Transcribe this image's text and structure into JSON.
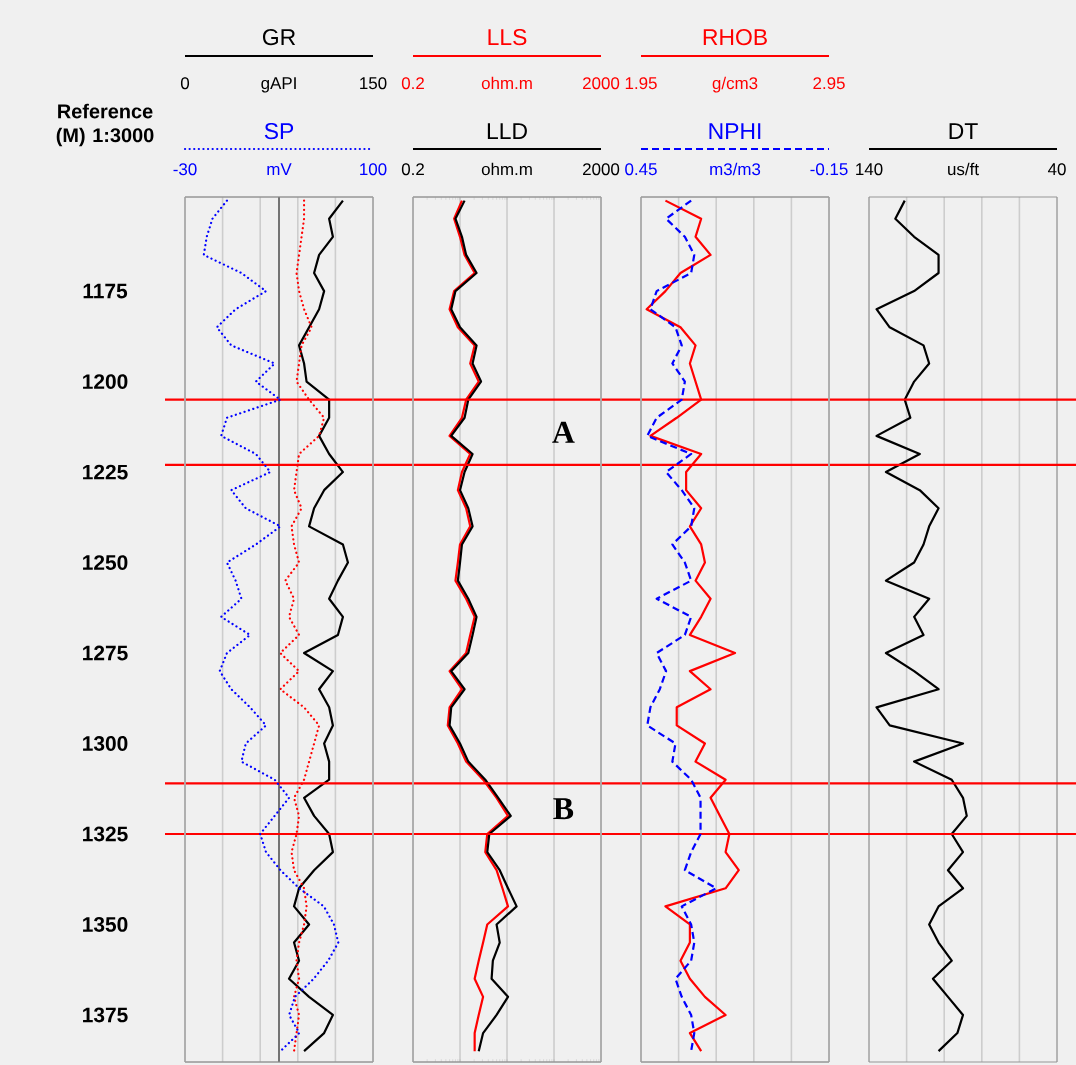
{
  "chart_data": [
    {
      "type": "line",
      "orientation": "horizontal",
      "ylabel": "Reference (M) 1:3000",
      "xlabel": "gAPI",
      "x2label": "mV",
      "x": [
        1150,
        1155,
        1160,
        1165,
        1170,
        1175,
        1180,
        1185,
        1190,
        1195,
        1200,
        1205,
        1210,
        1215,
        1220,
        1225,
        1230,
        1235,
        1240,
        1245,
        1250,
        1255,
        1260,
        1265,
        1270,
        1275,
        1280,
        1285,
        1290,
        1295,
        1300,
        1305,
        1310,
        1315,
        1320,
        1325,
        1330,
        1335,
        1340,
        1345,
        1350,
        1355,
        1360,
        1365,
        1370,
        1375,
        1380,
        1385
      ],
      "series": [
        {
          "name": "GR",
          "color": "#000000",
          "line_style": "solid",
          "values": [
            126,
            115,
            118,
            107,
            103,
            111,
            107,
            99,
            91,
            95,
            97,
            115,
            115,
            107,
            115,
            126,
            111,
            103,
            99,
            126,
            130,
            122,
            115,
            126,
            122,
            95,
            118,
            107,
            115,
            118,
            111,
            115,
            115,
            95,
            103,
            115,
            118,
            103,
            91,
            87,
            99,
            87,
            91,
            83,
            99,
            118,
            111,
            95
          ]
        },
        {
          "color": "#ff0000",
          "line_style": "dotted",
          "values": [
            95,
            95,
            93,
            91,
            89,
            91,
            95,
            101,
            93,
            91,
            89,
            99,
            111,
            107,
            91,
            89,
            87,
            93,
            85,
            87,
            91,
            80,
            87,
            83,
            91,
            76,
            91,
            76,
            95,
            107,
            103,
            99,
            95,
            87,
            91,
            89,
            85,
            87,
            95,
            97,
            95,
            91,
            89,
            91,
            87,
            91,
            89,
            87
          ]
        },
        {
          "name": "SP",
          "color": "#0000ff",
          "line_style": "dotted",
          "axis": "x2",
          "values": [
            -1,
            -11,
            -15,
            -17,
            9,
            26,
            5,
            -8,
            2,
            32,
            19,
            36,
            -1,
            -5,
            19,
            29,
            2,
            12,
            36,
            19,
            -1,
            5,
            9,
            -5,
            15,
            -1,
            -6,
            2,
            15,
            26,
            12,
            9,
            32,
            42,
            32,
            22,
            26,
            36,
            49,
            66,
            73,
            76,
            69,
            59,
            46,
            42,
            49,
            36
          ]
        }
      ],
      "xlim": [
        0,
        150
      ],
      "xticks": [
        0,
        {
          "value": 30,
          "label": null
        },
        {
          "value": 60,
          "label": null
        },
        {
          "value": 90,
          "label": null
        },
        {
          "value": 120,
          "label": null
        },
        150
      ],
      "x2lim": [
        -30,
        100
      ],
      "x2ticks": [
        -30,
        100
      ],
      "ylim": [
        1388,
        1149
      ],
      "yticks": [
        1175,
        1200,
        1225,
        1250,
        1275,
        1300,
        1325,
        1350,
        1375
      ],
      "grid": "x",
      "legend": "top",
      "ref_lines": [
        {
          "axis": "x",
          "value": 75,
          "color": "#555555"
        },
        {
          "axis": "y",
          "value": 1205,
          "color": "#ff0000"
        },
        {
          "axis": "y",
          "value": 1223,
          "color": "#ff0000"
        },
        {
          "axis": "y",
          "value": 1311,
          "color": "#ff0000"
        },
        {
          "axis": "y",
          "value": 1325,
          "color": "#ff0000"
        }
      ]
    },
    {
      "type": "line",
      "orientation": "horizontal",
      "xlabel": "ohm.m",
      "x2label": "ohm.m",
      "log": "x",
      "x": [
        1150,
        1155,
        1160,
        1165,
        1170,
        1175,
        1180,
        1185,
        1190,
        1195,
        1200,
        1205,
        1210,
        1215,
        1220,
        1225,
        1230,
        1235,
        1240,
        1245,
        1250,
        1255,
        1260,
        1265,
        1270,
        1275,
        1280,
        1285,
        1290,
        1295,
        1300,
        1305,
        1310,
        1315,
        1320,
        1325,
        1330,
        1335,
        1340,
        1345,
        1350,
        1355,
        1360,
        1365,
        1370,
        1375,
        1380,
        1385
      ],
      "series": [
        {
          "name": "LLS",
          "color": "#ff0000",
          "line_style": "solid",
          "values": [
            2.2,
            1.5,
            2.0,
            2.5,
            4.1,
            1.5,
            1.2,
            1.8,
            4.1,
            3.3,
            5.0,
            2.7,
            2.2,
            1.2,
            3.3,
            2.2,
            1.8,
            2.7,
            3.3,
            2.0,
            1.8,
            1.6,
            2.7,
            4.1,
            3.3,
            2.7,
            1.2,
            2.2,
            1.2,
            1.1,
            1.8,
            2.7,
            6.2,
            12,
            21,
            7.6,
            6.9,
            12,
            16,
            21,
            7.6,
            6.2,
            5.0,
            4.1,
            6.2,
            5.0,
            4.1,
            4.1
          ]
        },
        {
          "name": "LLD",
          "color": "#000000",
          "line_style": "solid",
          "values": [
            2.5,
            1.6,
            2.2,
            2.7,
            4.5,
            1.6,
            1.3,
            2.0,
            4.5,
            3.7,
            5.6,
            3.0,
            2.5,
            1.3,
            3.7,
            2.5,
            2.0,
            3.0,
            3.7,
            2.2,
            2.0,
            1.8,
            3.0,
            4.5,
            3.7,
            3.0,
            1.3,
            2.5,
            1.3,
            1.2,
            2.0,
            3.0,
            6.9,
            13,
            24,
            8.4,
            7.6,
            14,
            21,
            32,
            12,
            14,
            10,
            9.4,
            21,
            12,
            6.2,
            5.0
          ]
        }
      ],
      "xlim": [
        0.2,
        2000
      ],
      "xticks": [
        0.2,
        {
          "value": 2,
          "label": null
        },
        {
          "value": 20,
          "label": null
        },
        {
          "value": 200,
          "label": null
        },
        2000
      ],
      "x2lim": [
        0.2,
        2000
      ],
      "x2ticks": [
        0.2,
        2000
      ],
      "ylim": [
        1388,
        1149
      ],
      "yticks": [
        1175,
        1200,
        1225,
        1250,
        1275,
        1300,
        1325,
        1350,
        1375
      ],
      "grid": "x",
      "legend": "top",
      "tick_labels": "x",
      "ref_lines": [
        {
          "axis": "y",
          "value": 1205,
          "color": "#ff0000"
        },
        {
          "axis": "y",
          "value": 1223,
          "color": "#ff0000"
        },
        {
          "axis": "y",
          "value": 1311,
          "color": "#ff0000"
        },
        {
          "axis": "y",
          "value": 1325,
          "color": "#ff0000"
        }
      ],
      "annotations": [
        "A",
        "B"
      ]
    },
    {
      "type": "line",
      "orientation": "horizontal",
      "xlabel": "g/cm3",
      "x2label": "m3/m3",
      "x": [
        1150,
        1155,
        1160,
        1165,
        1170,
        1175,
        1180,
        1185,
        1190,
        1195,
        1200,
        1205,
        1210,
        1215,
        1220,
        1225,
        1230,
        1235,
        1240,
        1245,
        1250,
        1255,
        1260,
        1265,
        1270,
        1275,
        1280,
        1285,
        1290,
        1295,
        1300,
        1305,
        1310,
        1315,
        1320,
        1325,
        1330,
        1335,
        1340,
        1345,
        1350,
        1355,
        1360,
        1365,
        1370,
        1375,
        1380,
        1385
      ],
      "series": [
        {
          "name": "RHOB",
          "color": "#ff0000",
          "line_style": "solid",
          "values": [
            2.08,
            2.27,
            2.24,
            2.32,
            2.16,
            2.08,
            1.98,
            2.16,
            2.24,
            2.21,
            2.24,
            2.27,
            2.14,
            2.0,
            2.27,
            2.19,
            2.19,
            2.27,
            2.21,
            2.27,
            2.29,
            2.24,
            2.32,
            2.27,
            2.21,
            2.45,
            2.21,
            2.32,
            2.14,
            2.14,
            2.29,
            2.24,
            2.4,
            2.32,
            2.37,
            2.42,
            2.4,
            2.47,
            2.4,
            2.08,
            2.21,
            2.21,
            2.16,
            2.21,
            2.29,
            2.4,
            2.21,
            2.27
          ]
        },
        {
          "name": "NPHI",
          "color": "#0000ff",
          "line_style": "dashed",
          "axis": "x2",
          "values": [
            0.29,
            0.37,
            0.31,
            0.28,
            0.29,
            0.4,
            0.42,
            0.34,
            0.32,
            0.35,
            0.31,
            0.32,
            0.4,
            0.43,
            0.29,
            0.37,
            0.32,
            0.28,
            0.29,
            0.35,
            0.31,
            0.29,
            0.4,
            0.29,
            0.31,
            0.4,
            0.37,
            0.39,
            0.42,
            0.43,
            0.34,
            0.35,
            0.29,
            0.26,
            0.26,
            0.26,
            0.29,
            0.31,
            0.21,
            0.32,
            0.29,
            0.28,
            0.29,
            0.34,
            0.32,
            0.29,
            0.28,
            0.29
          ]
        }
      ],
      "xlim": [
        1.95,
        2.95
      ],
      "xticks": [
        1.95,
        {
          "value": 2.15,
          "label": null
        },
        {
          "value": 2.35,
          "label": null
        },
        {
          "value": 2.55,
          "label": null
        },
        {
          "value": 2.75,
          "label": null
        },
        2.95
      ],
      "x2lim": [
        0.45,
        -0.15
      ],
      "x2ticks": [
        0.45,
        -0.15
      ],
      "ylim": [
        1388,
        1149
      ],
      "yticks": [
        1175,
        1200,
        1225,
        1250,
        1275,
        1300,
        1325,
        1350,
        1375
      ],
      "grid": "x",
      "legend": "top",
      "tick_labels": "x",
      "ref_lines": [
        {
          "axis": "y",
          "value": 1205,
          "color": "#ff0000"
        },
        {
          "axis": "y",
          "value": 1223,
          "color": "#ff0000"
        },
        {
          "axis": "y",
          "value": 1311,
          "color": "#ff0000"
        },
        {
          "axis": "y",
          "value": 1325,
          "color": "#ff0000"
        }
      ]
    },
    {
      "type": "line",
      "orientation": "horizontal",
      "xlabel": "us/ft",
      "x": [
        1150,
        1155,
        1160,
        1165,
        1170,
        1175,
        1180,
        1185,
        1190,
        1195,
        1200,
        1205,
        1210,
        1215,
        1220,
        1225,
        1230,
        1235,
        1240,
        1245,
        1250,
        1255,
        1260,
        1265,
        1270,
        1275,
        1280,
        1285,
        1290,
        1295,
        1300,
        1305,
        1310,
        1315,
        1320,
        1325,
        1330,
        1335,
        1340,
        1345,
        1350,
        1355,
        1360,
        1365,
        1370,
        1375,
        1380,
        1385
      ],
      "series": [
        {
          "name": "DT",
          "color": "#000000",
          "line_style": "solid",
          "values": [
            121,
            126,
            116,
            103,
            103,
            116,
            136,
            129,
            111,
            108,
            116,
            121,
            118,
            136,
            113,
            131,
            113,
            103,
            108,
            111,
            116,
            131,
            108,
            116,
            111,
            131,
            116,
            103,
            136,
            129,
            90,
            116,
            96,
            90,
            88,
            96,
            90,
            98,
            90,
            103,
            108,
            103,
            96,
            106,
            98,
            90,
            93,
            103
          ]
        }
      ],
      "xlim": [
        140,
        40
      ],
      "xticks": [
        140,
        {
          "value": 120,
          "label": null
        },
        {
          "value": 100,
          "label": null
        },
        {
          "value": 80,
          "label": null
        },
        {
          "value": 60,
          "label": null
        },
        40
      ],
      "ylim": [
        1388,
        1149
      ],
      "yticks": [
        1175,
        1200,
        1225,
        1250,
        1275,
        1300,
        1325,
        1350,
        1375
      ],
      "grid": "x",
      "legend": "top",
      "tick_labels": "x",
      "ref_lines": [
        {
          "axis": "y",
          "value": 1205,
          "color": "#ff0000"
        },
        {
          "axis": "y",
          "value": 1223,
          "color": "#ff0000"
        },
        {
          "axis": "y",
          "value": 1311,
          "color": "#ff0000"
        },
        {
          "axis": "y",
          "value": 1325,
          "color": "#ff0000"
        }
      ]
    }
  ]
}
